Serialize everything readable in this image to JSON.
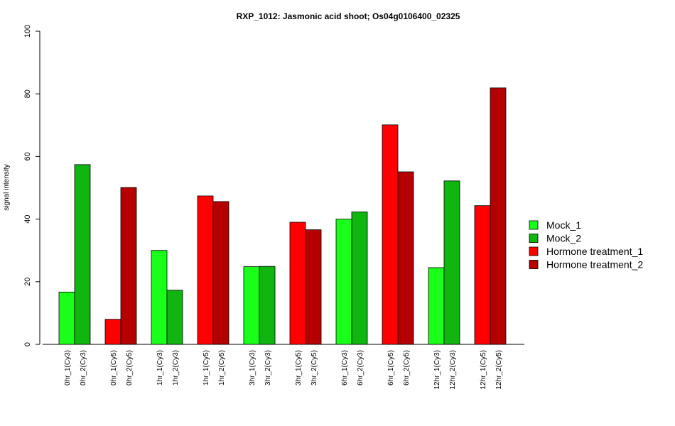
{
  "chart_data": {
    "type": "bar",
    "title": "RXP_1012: Jasmonic acid shoot; Os04g0106400_02325",
    "xlabel": "",
    "ylabel": "signal intensity",
    "ylim": [
      0,
      100
    ],
    "yticks": [
      0,
      20,
      40,
      60,
      80,
      100
    ],
    "grid": false,
    "legend_position": "right",
    "legend": [
      {
        "name": "Mock_1",
        "color": "#19ff19"
      },
      {
        "name": "Mock_2",
        "color": "#10b510"
      },
      {
        "name": "Hormone treatment_1",
        "color": "#ff0000"
      },
      {
        "name": "Hormone treatment_2",
        "color": "#b50000"
      }
    ],
    "categories": [
      "0hr_1(Cy3)",
      "0hr_2(Cy3)",
      "0hr_1(Cy5)",
      "0hr_2(Cy5)",
      "1hr_1(Cy3)",
      "1hr_2(Cy3)",
      "1hr_1(Cy5)",
      "1hr_2(Cy5)",
      "3hr_1(Cy3)",
      "3hr_2(Cy3)",
      "3hr_1(Cy5)",
      "3hr_2(Cy5)",
      "6hr_1(Cy3)",
      "6hr_2(Cy3)",
      "6hr_1(Cy5)",
      "6hr_2(Cy5)",
      "12hr_1(Cy3)",
      "12hr_2(Cy3)",
      "12hr_1(Cy5)",
      "12hr_2(Cy5)"
    ],
    "values": [
      16.7,
      57.4,
      8.0,
      50.1,
      30.0,
      17.3,
      47.4,
      45.6,
      24.8,
      24.9,
      39.0,
      36.6,
      40.0,
      42.3,
      70.1,
      55.1,
      24.5,
      52.2,
      44.3,
      81.9
    ],
    "bar_series": [
      0,
      1,
      2,
      3,
      0,
      1,
      2,
      3,
      0,
      1,
      2,
      3,
      0,
      1,
      2,
      3,
      0,
      1,
      2,
      3
    ]
  }
}
